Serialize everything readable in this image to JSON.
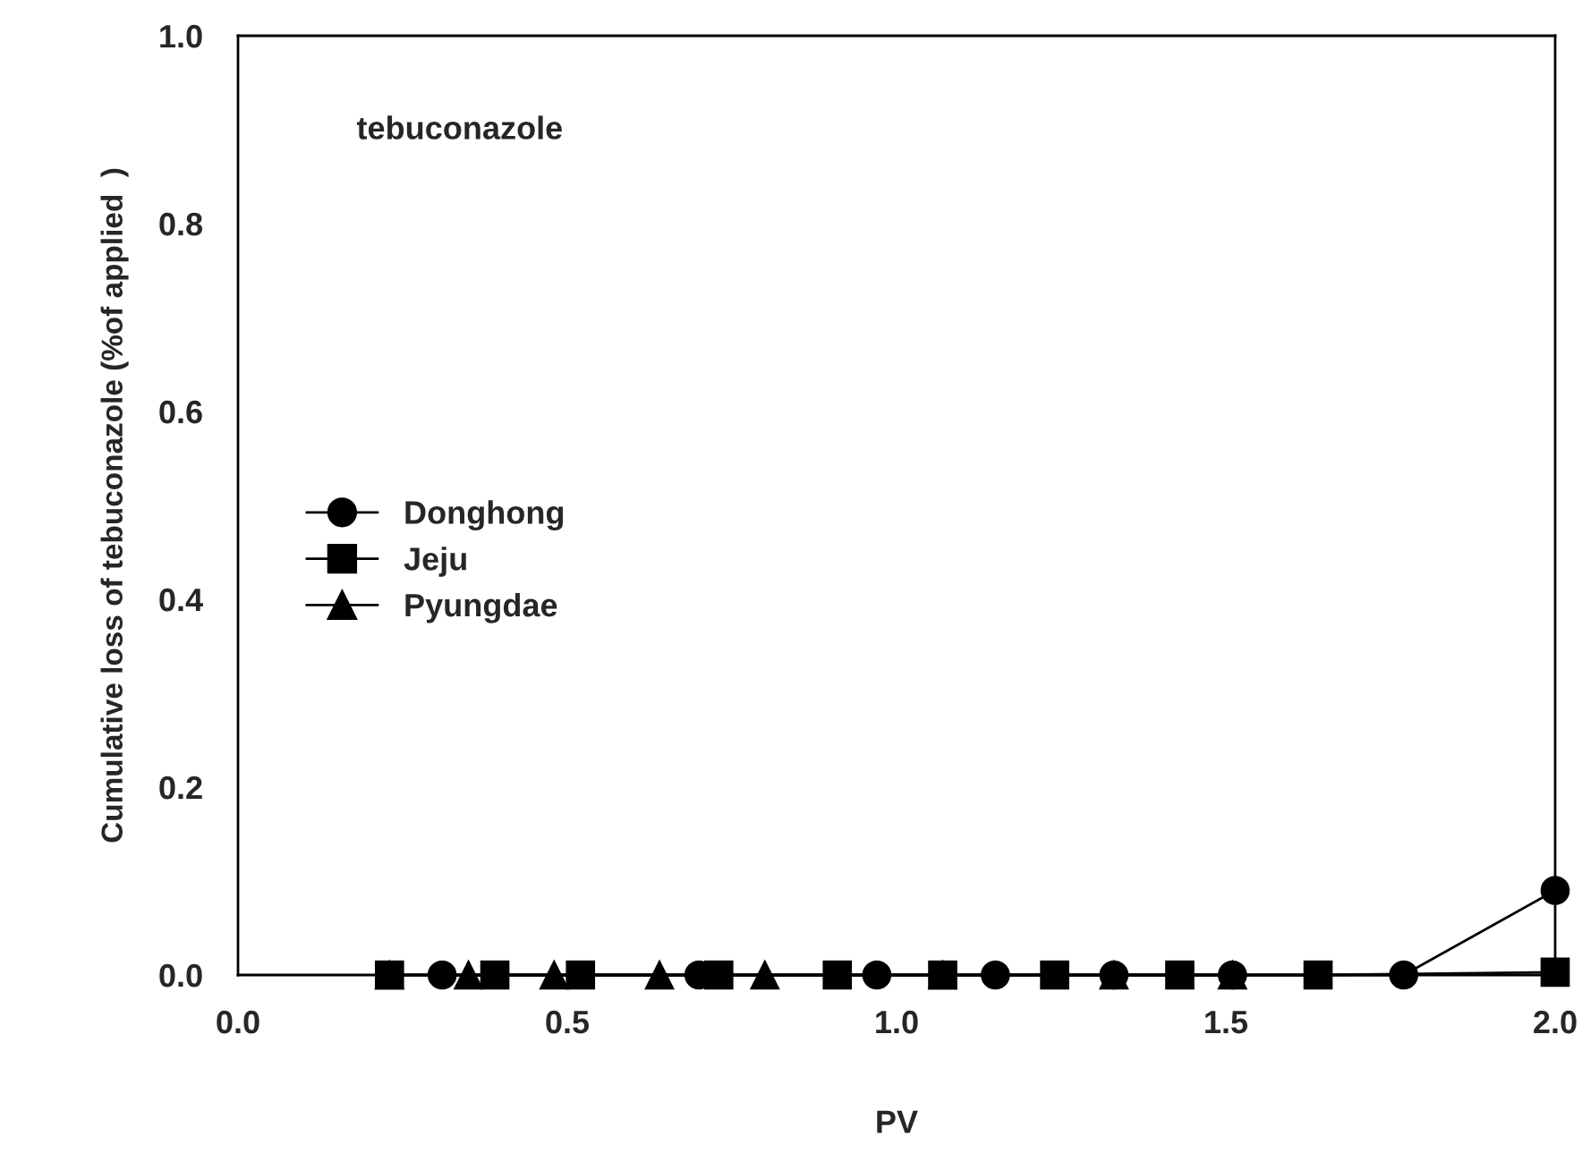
{
  "chart_data": {
    "type": "line",
    "xlabel": "PV",
    "ylabel": "Cumulative loss of tebuconazole (%of applied  )",
    "annotations": [
      "tebuconazole"
    ],
    "xlim": [
      0.0,
      2.0
    ],
    "xticks": [
      {
        "value": 0,
        "label": "0.0"
      },
      0.5,
      {
        "value": 1,
        "label": "1.0"
      },
      1.5,
      {
        "value": 2,
        "label": "2.0"
      }
    ],
    "ylim": [
      0.0,
      1.0
    ],
    "yticks": [
      {
        "value": 0,
        "label": "0.0"
      },
      0.2,
      0.4,
      0.6,
      0.8,
      {
        "value": 1,
        "label": "1.0"
      }
    ],
    "grid": false,
    "legend": "center left",
    "line_style": "solid",
    "series": [
      {
        "name": "Donghong",
        "color": "#000000",
        "marker": "circle",
        "x": [
          0.31,
          0.7,
          0.97,
          1.15,
          1.33,
          1.51,
          1.77,
          2.0
        ],
        "values": [
          0.0,
          0.0,
          0.0,
          0.0,
          0.0,
          0.0,
          0.0,
          0.09
        ]
      },
      {
        "name": "Jeju",
        "color": "#000000",
        "marker": "square",
        "x": [
          0.23,
          0.39,
          0.52,
          0.73,
          0.91,
          1.07,
          1.24,
          1.43,
          1.64,
          2.0
        ],
        "values": [
          0.0,
          0.0,
          0.0,
          0.0,
          0.0,
          0.0,
          0.0,
          0.0,
          0.0,
          0.003
        ]
      },
      {
        "name": "Pyungdae",
        "color": "#000000",
        "marker": "triangle",
        "x": [
          0.23,
          0.35,
          0.48,
          0.64,
          0.8,
          1.07,
          1.33,
          1.51
        ],
        "values": [
          0.0,
          0.0,
          0.0,
          0.0,
          0.0,
          0.0,
          0.0,
          0.0
        ]
      }
    ]
  }
}
